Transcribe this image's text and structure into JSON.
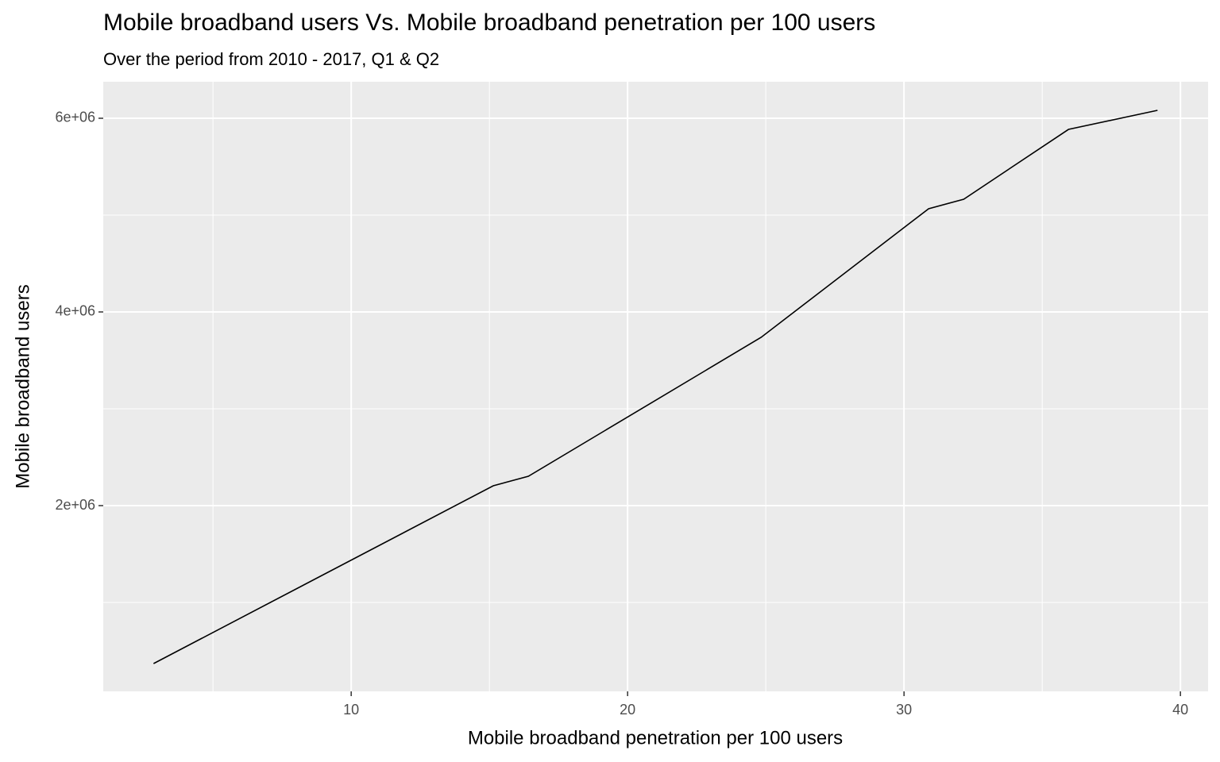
{
  "chart_data": {
    "type": "line",
    "title": "Mobile broadband users Vs. Mobile broadband penetration per 100 users",
    "subtitle": "Over the period from 2010 - 2017, Q1 & Q2",
    "x_label": "Mobile broadband penetration per 100 users",
    "y_label": "Mobile broadband users",
    "x": [
      2.85,
      15.14,
      16.41,
      24.83,
      30.89,
      32.16,
      35.95,
      39.17
    ],
    "series": [
      {
        "name": "Mobile broadband users",
        "color": "#000000",
        "values": [
          369000,
          2205000,
          2303000,
          3738000,
          5066000,
          5164000,
          5885000,
          6082000
        ]
      }
    ],
    "xlim": [
      1.03,
      41.0
    ],
    "ylim": [
      82000,
      6377000
    ],
    "xticks": [
      10,
      20,
      30,
      40
    ],
    "yticks": [
      {
        "value": 2000000,
        "label": "2e+06"
      },
      {
        "value": 4000000,
        "label": "4e+06"
      },
      {
        "value": 6000000,
        "label": "6e+06"
      }
    ],
    "x_minor_ticks": [
      5,
      15,
      25,
      35
    ],
    "y_minor_ticks": [
      1000000,
      3000000,
      5000000
    ],
    "grid": true,
    "legend": false
  }
}
